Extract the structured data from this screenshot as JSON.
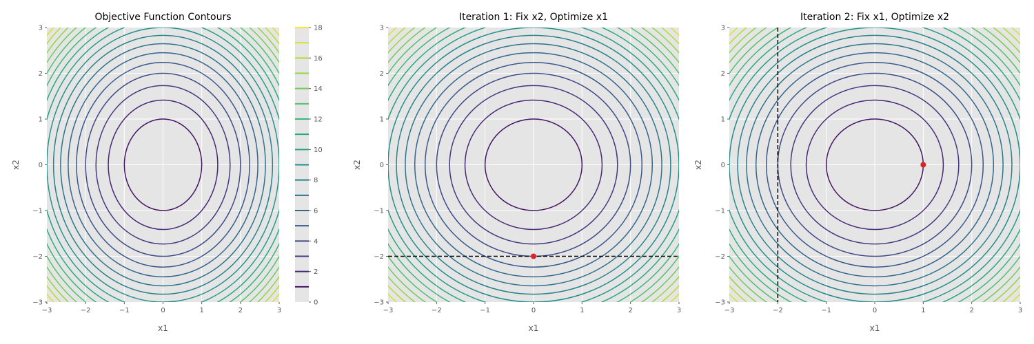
{
  "chart_data": [
    {
      "type": "contour",
      "title": "Objective Function Contours",
      "xlabel": "x1",
      "ylabel": "x2",
      "xlim": [
        -3,
        3
      ],
      "ylim": [
        -3,
        3
      ],
      "xticks": [
        -3,
        -2,
        -1,
        0,
        1,
        2,
        3
      ],
      "yticks": [
        -3,
        -2,
        -1,
        0,
        1,
        2,
        3
      ],
      "function_levels": [
        1,
        2,
        3,
        4,
        5,
        6,
        7,
        8,
        9,
        10,
        11,
        12,
        13,
        14,
        15,
        16,
        17,
        18
      ],
      "grid": true,
      "colormap": "viridis",
      "colorbar": {
        "ticks": [
          0,
          2,
          4,
          6,
          8,
          10,
          12,
          14,
          16,
          18
        ],
        "tick_labels": [
          "0",
          "2",
          "4",
          "6",
          "8",
          "10",
          "12",
          "14",
          "16",
          "18"
        ],
        "range": [
          0,
          18
        ]
      }
    },
    {
      "type": "contour",
      "title": "Iteration 1: Fix x2, Optimize x1",
      "xlabel": "x1",
      "ylabel": "x2",
      "xlim": [
        -3,
        3
      ],
      "ylim": [
        -3,
        3
      ],
      "xticks": [
        -3,
        -2,
        -1,
        0,
        1,
        2,
        3
      ],
      "yticks": [
        -3,
        -2,
        -1,
        0,
        1,
        2,
        3
      ],
      "function_levels": [
        1,
        2,
        3,
        4,
        5,
        6,
        7,
        8,
        9,
        10,
        11,
        12,
        13,
        14,
        15,
        16,
        17,
        18
      ],
      "grid": true,
      "colormap": "viridis",
      "lines": [
        {
          "orientation": "horizontal",
          "value": -2,
          "style": "dashed",
          "color": "#000000"
        }
      ],
      "points": [
        {
          "x": 0,
          "y": -2,
          "color": "#d62728"
        }
      ]
    },
    {
      "type": "contour",
      "title": "Iteration 2: Fix x1, Optimize x2",
      "xlabel": "x1",
      "ylabel": "x2",
      "xlim": [
        -3,
        3
      ],
      "ylim": [
        -3,
        3
      ],
      "xticks": [
        -3,
        -2,
        -1,
        0,
        1,
        2,
        3
      ],
      "yticks": [
        -3,
        -2,
        -1,
        0,
        1,
        2,
        3
      ],
      "function_levels": [
        1,
        2,
        3,
        4,
        5,
        6,
        7,
        8,
        9,
        10,
        11,
        12,
        13,
        14,
        15,
        16,
        17,
        18
      ],
      "grid": true,
      "colormap": "viridis",
      "lines": [
        {
          "orientation": "vertical",
          "value": -2,
          "style": "dashed",
          "color": "#000000"
        }
      ],
      "points": [
        {
          "x": 1,
          "y": 0,
          "color": "#d62728"
        }
      ]
    }
  ]
}
